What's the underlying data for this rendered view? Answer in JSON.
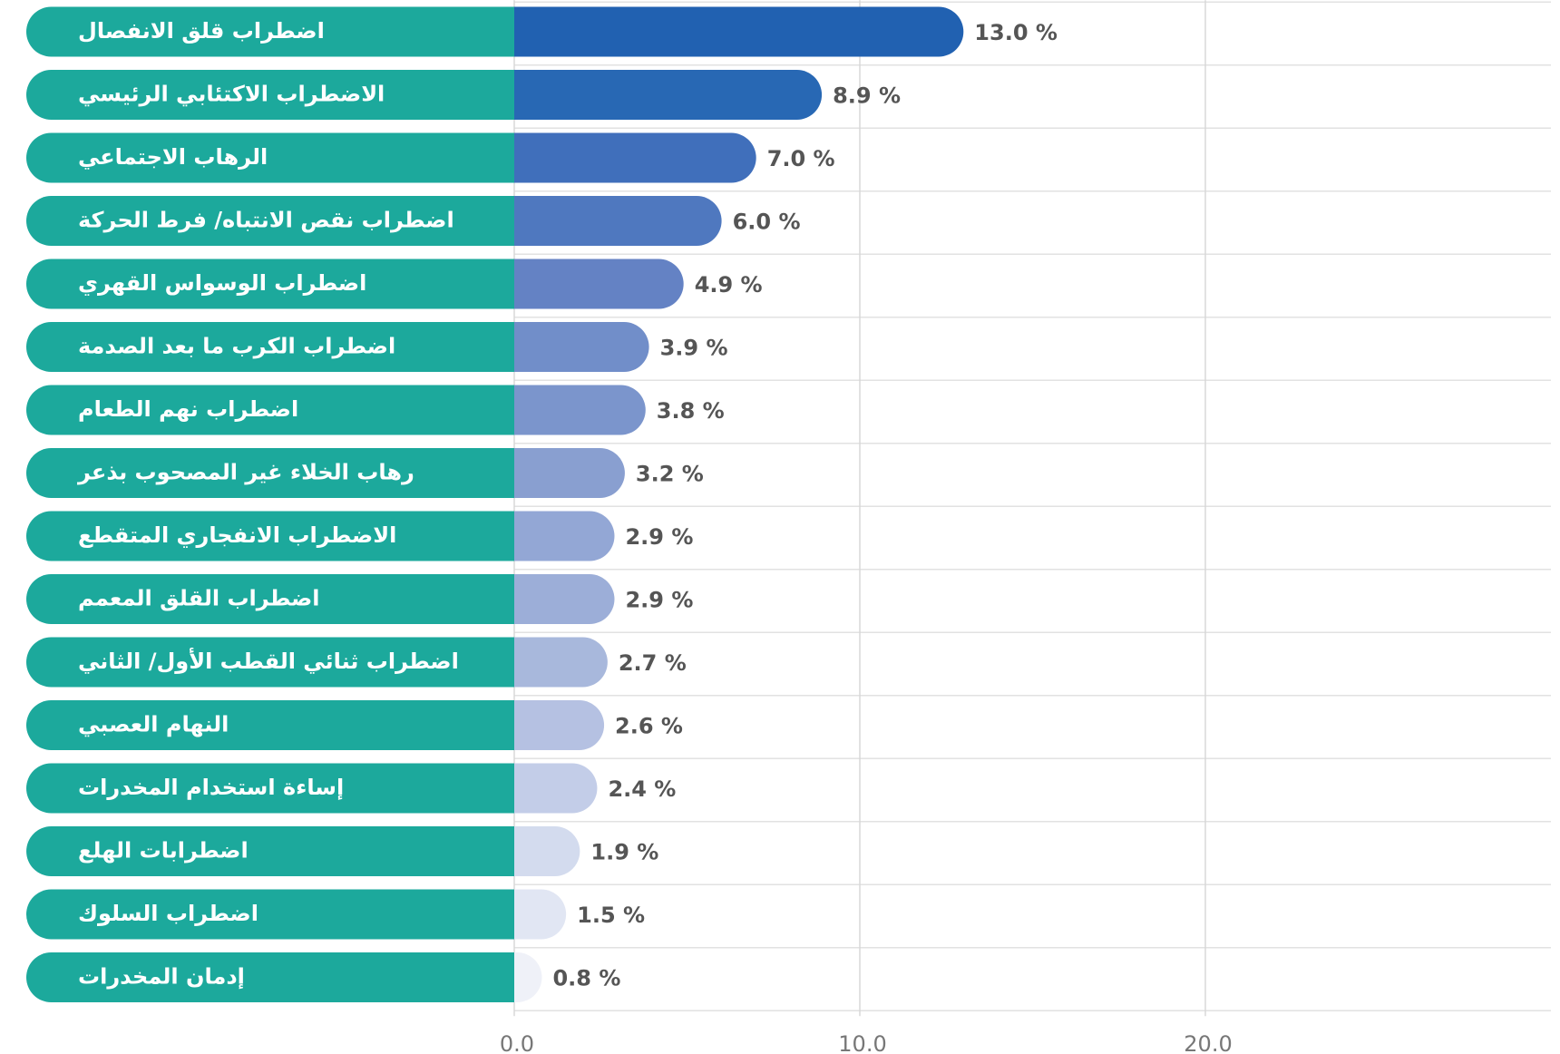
{
  "chart_data": {
    "type": "bar",
    "orientation": "horizontal",
    "categories": [
      "اضطراب قلق الانفصال",
      "الاضطراب الاكتئابي الرئيسي",
      "الرهاب الاجتماعي",
      "اضطراب نقص الانتباه/ فرط الحركة",
      "اضطراب الوسواس القهري",
      "اضطراب الكرب ما بعد الصدمة",
      "اضطراب نهم الطعام",
      "رهاب الخلاء غير المصحوب بذعر",
      "الاضطراب الانفجاري المتقطع",
      "اضطراب القلق المعمم",
      "اضطراب ثنائي القطب الأول/ الثاني",
      "النهام العصبي",
      "إساءة استخدام المخدرات",
      "اضطرابات الهلع",
      "اضطراب السلوك",
      "إدمان المخدرات"
    ],
    "values": [
      13.0,
      8.9,
      7.0,
      6.0,
      4.9,
      3.9,
      3.8,
      3.2,
      2.9,
      2.9,
      2.7,
      2.6,
      2.4,
      1.9,
      1.5,
      0.8
    ],
    "value_labels": [
      "13.0 %",
      "8.9 %",
      "7.0 %",
      "6.0 %",
      "4.9 %",
      "3.9 %",
      "3.8 %",
      "3.2 %",
      "2.9 %",
      "2.9 %",
      "2.7 %",
      "2.6 %",
      "2.4 %",
      "1.9 %",
      "1.5 %",
      "0.8 %"
    ],
    "colors": [
      "#2161b1",
      "#2868b4",
      "#406fbb",
      "#4f78bf",
      "#6482c4",
      "#718ec9",
      "#7b95cc",
      "#899fd0",
      "#93a7d5",
      "#9caed8",
      "#a8b8dc",
      "#b5c1e2",
      "#c3cde8",
      "#d3dbee",
      "#e1e6f3",
      "#eff1f8"
    ],
    "label_color": "#1ca99c",
    "xlim": [
      0,
      30
    ],
    "xticks": [
      {
        "value": 0,
        "label": "0.0"
      },
      {
        "value": 10,
        "label": "10.0"
      },
      {
        "value": 20,
        "label": "20.0"
      }
    ],
    "grid": true
  }
}
